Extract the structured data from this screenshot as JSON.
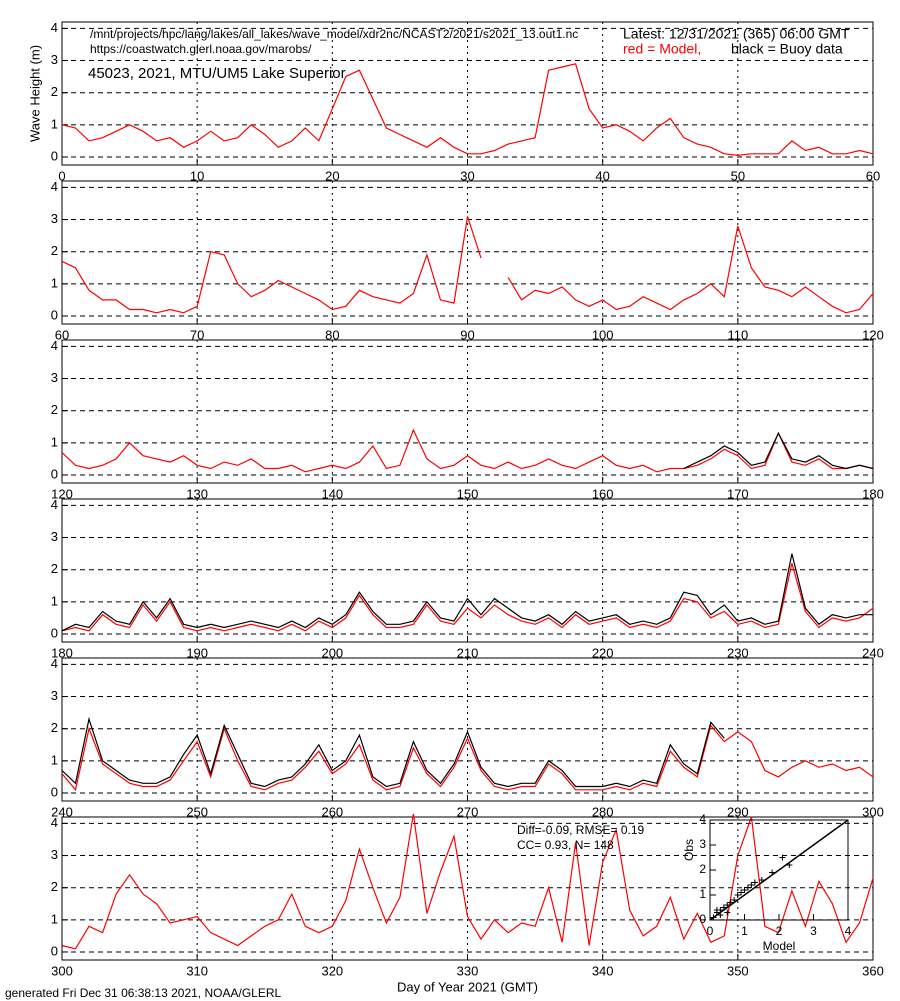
{
  "header": {
    "path": "/mnt/projects/hpc/lang/lakes/all_lakes/wave_model/xdr2nc/NCAST2/2021/s2021_13.out1.nc",
    "url": "https://coastwatch.glerl.noaa.gov/marobs/",
    "latest": "Latest: 12/31/2021 (365) 06:00 GMT",
    "model_legend": "red = Model,",
    "buoy_legend": "black = Buoy data",
    "station": "45023, 2021, MTU/UM5 Lake Superior",
    "footer": "generated Fri Dec 31 06:38:13 2021, NOAA/GLERL"
  },
  "chart_data": [
    {
      "type": "line",
      "ylabel": "Wave Height (m)",
      "grid": true,
      "xlim": [
        0,
        60
      ],
      "ylim": [
        -0.25,
        4.2
      ],
      "xticks": [
        0,
        10,
        20,
        30,
        40,
        50,
        60
      ],
      "yticks": [
        0,
        1,
        2,
        3,
        4
      ],
      "x": [
        0,
        1,
        2,
        3,
        4,
        5,
        6,
        7,
        8,
        9,
        10,
        11,
        12,
        13,
        14,
        15,
        16,
        17,
        18,
        19,
        20,
        21,
        22,
        23,
        24,
        25,
        26,
        27,
        28,
        29,
        30,
        31,
        32,
        33,
        34,
        35,
        36,
        37,
        38,
        39,
        40,
        41,
        42,
        43,
        44,
        45,
        46,
        47,
        48,
        49,
        50,
        51,
        52,
        53,
        54,
        55,
        56,
        57,
        58,
        59,
        60
      ],
      "series": [
        {
          "color": "#ff0000",
          "values": [
            1.0,
            0.9,
            0.5,
            0.6,
            0.8,
            1.0,
            0.8,
            0.5,
            0.6,
            0.3,
            0.5,
            0.8,
            0.5,
            0.6,
            1.0,
            0.7,
            0.3,
            0.5,
            0.9,
            0.5,
            1.5,
            2.5,
            2.7,
            1.8,
            0.9,
            0.7,
            0.5,
            0.3,
            0.6,
            0.3,
            0.1,
            0.1,
            0.2,
            0.4,
            0.5,
            0.6,
            2.7,
            2.8,
            2.9,
            1.5,
            0.9,
            1.0,
            0.8,
            0.5,
            0.9,
            1.2,
            0.6,
            0.4,
            0.3,
            0.1,
            0.05,
            0.1,
            0.1,
            0.1,
            0.5,
            0.2,
            0.3,
            0.1,
            0.1,
            0.2,
            0.1
          ]
        }
      ]
    },
    {
      "type": "line",
      "grid": true,
      "xlim": [
        60,
        120
      ],
      "ylim": [
        -0.25,
        4.2
      ],
      "xticks": [
        60,
        70,
        80,
        90,
        100,
        110,
        120
      ],
      "yticks": [
        0,
        1,
        2,
        3,
        4
      ],
      "x": [
        60,
        61,
        62,
        63,
        64,
        65,
        66,
        67,
        68,
        69,
        70,
        71,
        72,
        73,
        74,
        75,
        76,
        77,
        78,
        79,
        80,
        81,
        82,
        83,
        84,
        85,
        86,
        87,
        88,
        89,
        90,
        91,
        92,
        93,
        94,
        95,
        96,
        97,
        98,
        99,
        100,
        101,
        102,
        103,
        104,
        105,
        106,
        107,
        108,
        109,
        110,
        111,
        112,
        113,
        114,
        115,
        116,
        117,
        118,
        119,
        120
      ],
      "series": [
        {
          "color": "#ff0000",
          "values": [
            1.7,
            1.5,
            0.8,
            0.5,
            0.5,
            0.2,
            0.2,
            0.1,
            0.2,
            0.1,
            0.3,
            2.0,
            1.9,
            1.0,
            0.6,
            0.8,
            1.1,
            0.9,
            0.7,
            0.5,
            0.2,
            0.3,
            0.8,
            0.6,
            0.5,
            0.4,
            0.7,
            1.9,
            0.5,
            0.4,
            3.1,
            1.8,
            null,
            1.2,
            0.5,
            0.8,
            0.7,
            0.9,
            0.5,
            0.3,
            0.5,
            0.2,
            0.3,
            0.6,
            0.4,
            0.2,
            0.5,
            0.7,
            1.0,
            0.6,
            2.8,
            1.5,
            0.9,
            0.8,
            0.6,
            0.9,
            0.6,
            0.3,
            0.1,
            0.2,
            0.7
          ]
        }
      ]
    },
    {
      "type": "line",
      "grid": true,
      "xlim": [
        120,
        180
      ],
      "ylim": [
        -0.25,
        4.2
      ],
      "xticks": [
        120,
        130,
        140,
        150,
        160,
        170,
        180
      ],
      "yticks": [
        0,
        1,
        2,
        3,
        4
      ],
      "x": [
        120,
        121,
        122,
        123,
        124,
        125,
        126,
        127,
        128,
        129,
        130,
        131,
        132,
        133,
        134,
        135,
        136,
        137,
        138,
        139,
        140,
        141,
        142,
        143,
        144,
        145,
        146,
        147,
        148,
        149,
        150,
        151,
        152,
        153,
        154,
        155,
        156,
        157,
        158,
        159,
        160,
        161,
        162,
        163,
        164,
        165,
        166,
        167,
        168,
        169,
        170,
        171,
        172,
        173,
        174,
        175,
        176,
        177,
        178,
        179,
        180
      ],
      "series": [
        {
          "color": "#ff0000",
          "values": [
            0.7,
            0.3,
            0.2,
            0.3,
            0.5,
            1.0,
            0.6,
            0.5,
            0.4,
            0.6,
            0.3,
            0.2,
            0.4,
            0.3,
            0.5,
            0.2,
            0.2,
            0.3,
            0.1,
            0.2,
            0.3,
            0.2,
            0.4,
            0.9,
            0.2,
            0.3,
            1.4,
            0.5,
            0.2,
            0.3,
            0.6,
            0.3,
            0.2,
            0.4,
            0.2,
            0.3,
            0.5,
            0.3,
            0.2,
            0.4,
            0.6,
            0.3,
            0.2,
            0.3,
            0.1,
            0.2,
            0.2,
            0.3,
            0.5,
            0.8,
            0.6,
            0.2,
            0.3,
            1.3,
            0.4,
            0.3,
            0.5,
            0.2,
            0.2,
            0.3,
            0.2
          ]
        },
        {
          "color": "#000000",
          "values": [
            null,
            null,
            null,
            null,
            null,
            null,
            null,
            null,
            null,
            null,
            null,
            null,
            null,
            null,
            null,
            null,
            null,
            null,
            null,
            null,
            null,
            null,
            null,
            null,
            null,
            null,
            null,
            null,
            null,
            null,
            null,
            null,
            null,
            null,
            null,
            null,
            null,
            null,
            null,
            null,
            null,
            null,
            null,
            null,
            null,
            null,
            0.2,
            0.4,
            0.6,
            0.9,
            0.7,
            0.3,
            0.4,
            1.3,
            0.5,
            0.4,
            0.6,
            0.3,
            0.2,
            0.3,
            0.2
          ]
        }
      ]
    },
    {
      "type": "line",
      "grid": true,
      "xlim": [
        180,
        240
      ],
      "ylim": [
        -0.25,
        4.2
      ],
      "xticks": [
        180,
        190,
        200,
        210,
        220,
        230,
        240
      ],
      "yticks": [
        0,
        1,
        2,
        3,
        4
      ],
      "x": [
        180,
        181,
        182,
        183,
        184,
        185,
        186,
        187,
        188,
        189,
        190,
        191,
        192,
        193,
        194,
        195,
        196,
        197,
        198,
        199,
        200,
        201,
        202,
        203,
        204,
        205,
        206,
        207,
        208,
        209,
        210,
        211,
        212,
        213,
        214,
        215,
        216,
        217,
        218,
        219,
        220,
        221,
        222,
        223,
        224,
        225,
        226,
        227,
        228,
        229,
        230,
        231,
        232,
        233,
        234,
        235,
        236,
        237,
        238,
        239,
        240
      ],
      "series": [
        {
          "color": "#ff0000",
          "values": [
            0.1,
            0.2,
            0.1,
            0.6,
            0.3,
            0.2,
            0.9,
            0.4,
            1.0,
            0.2,
            0.1,
            0.2,
            0.1,
            0.2,
            0.3,
            0.2,
            0.1,
            0.3,
            0.1,
            0.4,
            0.2,
            0.5,
            1.2,
            0.6,
            0.2,
            0.2,
            0.3,
            0.9,
            0.4,
            0.3,
            0.8,
            0.5,
            0.9,
            0.6,
            0.4,
            0.3,
            0.5,
            0.2,
            0.6,
            0.3,
            0.4,
            0.5,
            0.2,
            0.3,
            0.2,
            0.4,
            1.1,
            1.0,
            0.5,
            0.7,
            0.3,
            0.4,
            0.2,
            0.3,
            2.2,
            0.7,
            0.2,
            0.5,
            0.4,
            0.5,
            0.8
          ]
        },
        {
          "color": "#000000",
          "values": [
            0.1,
            0.3,
            0.2,
            0.7,
            0.4,
            0.3,
            1.0,
            0.5,
            1.1,
            0.3,
            0.2,
            0.3,
            0.2,
            0.3,
            0.4,
            0.3,
            0.2,
            0.4,
            0.2,
            0.5,
            0.3,
            0.6,
            1.3,
            0.7,
            0.3,
            0.3,
            0.4,
            1.0,
            0.5,
            0.4,
            1.1,
            0.6,
            1.1,
            0.8,
            0.5,
            0.4,
            0.6,
            0.3,
            0.7,
            0.4,
            0.5,
            0.6,
            0.3,
            0.4,
            0.3,
            0.5,
            1.3,
            1.2,
            0.6,
            0.9,
            0.4,
            0.5,
            0.3,
            0.4,
            2.5,
            0.8,
            0.3,
            0.6,
            0.5,
            0.6,
            0.6
          ]
        }
      ]
    },
    {
      "type": "line",
      "grid": true,
      "xlim": [
        240,
        300
      ],
      "ylim": [
        -0.25,
        4.2
      ],
      "xticks": [
        240,
        250,
        260,
        270,
        280,
        290,
        300
      ],
      "yticks": [
        0,
        1,
        2,
        3,
        4
      ],
      "x": [
        240,
        241,
        242,
        243,
        244,
        245,
        246,
        247,
        248,
        249,
        250,
        251,
        252,
        253,
        254,
        255,
        256,
        257,
        258,
        259,
        260,
        261,
        262,
        263,
        264,
        265,
        266,
        267,
        268,
        269,
        270,
        271,
        272,
        273,
        274,
        275,
        276,
        277,
        278,
        279,
        280,
        281,
        282,
        283,
        284,
        285,
        286,
        287,
        288,
        289,
        290,
        291,
        292,
        293,
        294,
        295,
        296,
        297,
        298,
        299,
        300
      ],
      "series": [
        {
          "color": "#ff0000",
          "values": [
            0.6,
            0.1,
            2.0,
            0.9,
            0.6,
            0.3,
            0.2,
            0.2,
            0.4,
            1.0,
            1.6,
            0.5,
            2.0,
            1.0,
            0.2,
            0.1,
            0.3,
            0.4,
            0.8,
            1.3,
            0.6,
            0.9,
            1.5,
            0.4,
            0.1,
            0.2,
            1.4,
            0.6,
            0.2,
            0.8,
            1.7,
            0.7,
            0.2,
            0.1,
            0.2,
            0.2,
            0.9,
            0.6,
            0.1,
            0.1,
            0.1,
            0.2,
            0.1,
            0.3,
            0.2,
            1.3,
            0.8,
            0.5,
            2.1,
            1.6,
            1.9,
            1.6,
            0.7,
            0.5,
            0.8,
            1.0,
            0.8,
            0.9,
            0.7,
            0.8,
            0.5
          ]
        },
        {
          "color": "#000000",
          "values": [
            0.7,
            0.3,
            2.3,
            1.0,
            0.7,
            0.4,
            0.3,
            0.3,
            0.5,
            1.2,
            1.8,
            0.6,
            2.1,
            1.2,
            0.3,
            0.2,
            0.4,
            0.5,
            0.9,
            1.5,
            0.7,
            1.0,
            1.8,
            0.5,
            0.2,
            0.3,
            1.6,
            0.7,
            0.3,
            0.9,
            1.9,
            0.8,
            0.3,
            0.2,
            0.3,
            0.3,
            1.0,
            0.7,
            0.2,
            0.2,
            0.2,
            0.3,
            0.2,
            0.4,
            0.3,
            1.5,
            0.9,
            0.6,
            2.2,
            1.7,
            null,
            null,
            null,
            null,
            null,
            null,
            null,
            null,
            null,
            null,
            null
          ]
        }
      ]
    },
    {
      "type": "line",
      "xlabel": "Day of Year 2021 (GMT)",
      "grid": true,
      "xlim": [
        300,
        360
      ],
      "ylim": [
        -0.25,
        4.2
      ],
      "xticks": [
        300,
        310,
        320,
        330,
        340,
        350,
        360
      ],
      "yticks": [
        0,
        1,
        2,
        3,
        4
      ],
      "x": [
        300,
        301,
        302,
        303,
        304,
        305,
        306,
        307,
        308,
        309,
        310,
        311,
        312,
        313,
        314,
        315,
        316,
        317,
        318,
        319,
        320,
        321,
        322,
        323,
        324,
        325,
        326,
        327,
        328,
        329,
        330,
        331,
        332,
        333,
        334,
        335,
        336,
        337,
        338,
        339,
        340,
        341,
        342,
        343,
        344,
        345,
        346,
        347,
        348,
        349,
        350,
        351,
        352,
        353,
        354,
        355,
        356,
        357,
        358,
        359,
        360
      ],
      "series": [
        {
          "color": "#ff0000",
          "values": [
            0.2,
            0.1,
            0.8,
            0.6,
            1.8,
            2.4,
            1.8,
            1.5,
            0.9,
            1.0,
            1.1,
            0.6,
            0.4,
            0.2,
            0.5,
            0.8,
            1.0,
            1.8,
            0.8,
            0.6,
            0.8,
            1.6,
            3.2,
            2.0,
            0.9,
            1.7,
            4.3,
            1.2,
            2.5,
            3.6,
            1.1,
            0.4,
            1.0,
            0.6,
            0.9,
            0.8,
            2.0,
            0.3,
            3.4,
            0.2,
            2.8,
            3.8,
            1.3,
            0.5,
            0.8,
            1.7,
            0.4,
            1.2,
            0.3,
            0.5,
            3.0,
            4.2,
            0.8,
            0.6,
            1.9,
            0.8,
            2.2,
            1.5,
            0.3,
            0.9,
            2.3
          ]
        }
      ]
    },
    {
      "type": "scatter",
      "xlabel": "Model",
      "ylabel": "Obs",
      "stats": "Diff=-0.09,  RMSE= 0.19",
      "stats2": "CC= 0.93,  N= 148",
      "xlim": [
        0,
        4
      ],
      "ylim": [
        0,
        4
      ],
      "xticks": [
        0,
        1,
        2,
        3,
        4
      ],
      "yticks": [
        0,
        1,
        2,
        3,
        4
      ],
      "color": "#000000",
      "x": [
        0.1,
        0.2,
        0.3,
        0.4,
        0.5,
        0.6,
        0.7,
        0.8,
        0.9,
        1.0,
        1.1,
        1.2,
        1.3,
        1.5,
        1.8,
        2.1,
        2.3,
        0.3,
        0.5,
        0.2
      ],
      "values": [
        0.1,
        0.3,
        0.4,
        0.5,
        0.6,
        0.7,
        0.8,
        1.0,
        1.1,
        1.2,
        1.3,
        1.4,
        1.5,
        1.6,
        1.9,
        2.5,
        2.2,
        0.2,
        0.3,
        0.4
      ]
    }
  ]
}
